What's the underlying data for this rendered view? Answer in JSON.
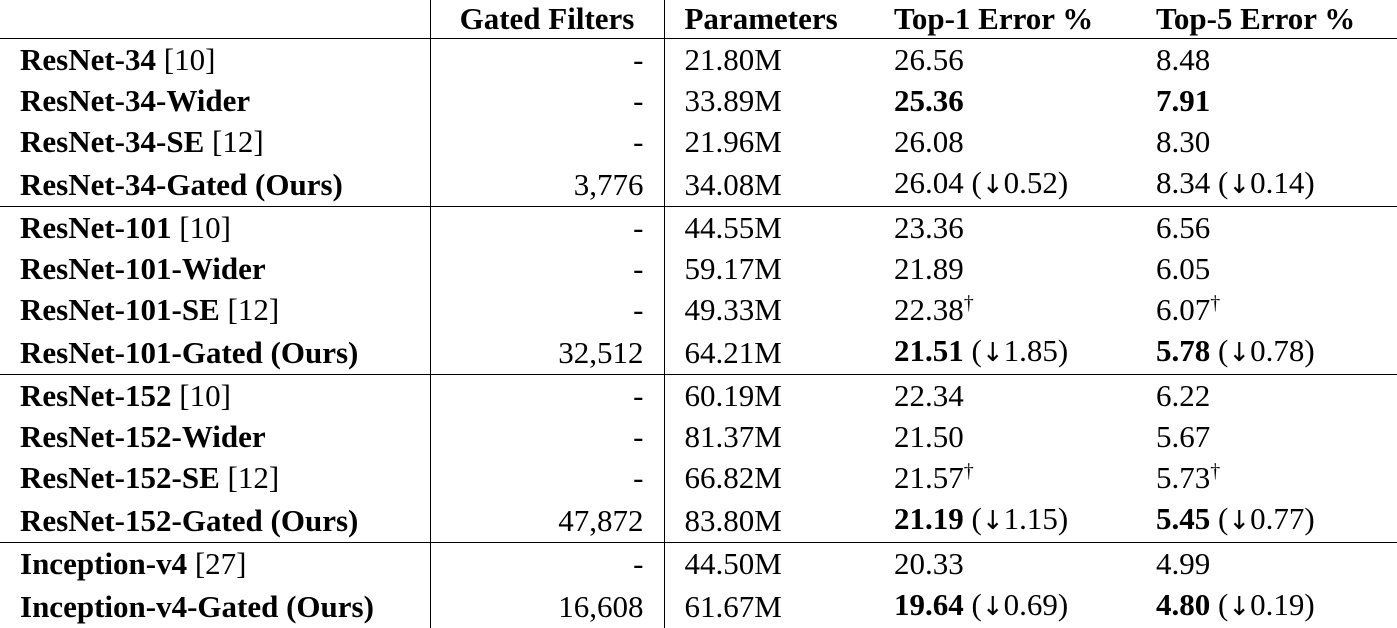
{
  "table": {
    "headers": {
      "model": "",
      "gated_filters": "Gated Filters",
      "parameters": "Parameters",
      "top1": "Top-1 Error %",
      "top5": "Top-5 Error %"
    },
    "groups": [
      {
        "rows": [
          {
            "name": "ResNet-34",
            "ref": " [10]",
            "gated": "-",
            "params": "21.80M",
            "top1": {
              "val": "26.56",
              "bold": false,
              "delta": "",
              "dag": false
            },
            "top5": {
              "val": "8.48",
              "bold": false,
              "delta": "",
              "dag": false
            }
          },
          {
            "name": "ResNet-34-Wider",
            "ref": "",
            "gated": "-",
            "params": "33.89M",
            "top1": {
              "val": "25.36",
              "bold": true,
              "delta": "",
              "dag": false
            },
            "top5": {
              "val": "7.91",
              "bold": true,
              "delta": "",
              "dag": false
            }
          },
          {
            "name": "ResNet-34-SE",
            "ref": " [12]",
            "gated": "-",
            "params": "21.96M",
            "top1": {
              "val": "26.08",
              "bold": false,
              "delta": "",
              "dag": false
            },
            "top5": {
              "val": "8.30",
              "bold": false,
              "delta": "",
              "dag": false
            }
          },
          {
            "name": "ResNet-34-Gated (Ours)",
            "ref": "",
            "gated": "3,776",
            "params": "34.08M",
            "top1": {
              "val": "26.04",
              "bold": false,
              "delta": "0.52",
              "dag": false
            },
            "top5": {
              "val": "8.34",
              "bold": false,
              "delta": "0.14",
              "dag": false
            }
          }
        ]
      },
      {
        "rows": [
          {
            "name": "ResNet-101",
            "ref": " [10]",
            "gated": "-",
            "params": "44.55M",
            "top1": {
              "val": "23.36",
              "bold": false,
              "delta": "",
              "dag": false
            },
            "top5": {
              "val": "6.56",
              "bold": false,
              "delta": "",
              "dag": false
            }
          },
          {
            "name": "ResNet-101-Wider",
            "ref": "",
            "gated": "-",
            "params": "59.17M",
            "top1": {
              "val": "21.89",
              "bold": false,
              "delta": "",
              "dag": false
            },
            "top5": {
              "val": "6.05",
              "bold": false,
              "delta": "",
              "dag": false
            }
          },
          {
            "name": "ResNet-101-SE",
            "ref": " [12]",
            "gated": "-",
            "params": "49.33M",
            "top1": {
              "val": "22.38",
              "bold": false,
              "delta": "",
              "dag": true
            },
            "top5": {
              "val": "6.07",
              "bold": false,
              "delta": "",
              "dag": true
            }
          },
          {
            "name": "ResNet-101-Gated (Ours)",
            "ref": "",
            "gated": "32,512",
            "params": "64.21M",
            "top1": {
              "val": "21.51",
              "bold": true,
              "delta": "1.85",
              "dag": false
            },
            "top5": {
              "val": "5.78",
              "bold": true,
              "delta": "0.78",
              "dag": false
            }
          }
        ]
      },
      {
        "rows": [
          {
            "name": "ResNet-152",
            "ref": " [10]",
            "gated": "-",
            "params": "60.19M",
            "top1": {
              "val": "22.34",
              "bold": false,
              "delta": "",
              "dag": false
            },
            "top5": {
              "val": "6.22",
              "bold": false,
              "delta": "",
              "dag": false
            }
          },
          {
            "name": "ResNet-152-Wider",
            "ref": "",
            "gated": "-",
            "params": "81.37M",
            "top1": {
              "val": "21.50",
              "bold": false,
              "delta": "",
              "dag": false
            },
            "top5": {
              "val": "5.67",
              "bold": false,
              "delta": "",
              "dag": false
            }
          },
          {
            "name": "ResNet-152-SE",
            "ref": " [12]",
            "gated": "-",
            "params": "66.82M",
            "top1": {
              "val": "21.57",
              "bold": false,
              "delta": "",
              "dag": true
            },
            "top5": {
              "val": "5.73",
              "bold": false,
              "delta": "",
              "dag": true
            }
          },
          {
            "name": "ResNet-152-Gated (Ours)",
            "ref": "",
            "gated": "47,872",
            "params": "83.80M",
            "top1": {
              "val": "21.19",
              "bold": true,
              "delta": "1.15",
              "dag": false
            },
            "top5": {
              "val": "5.45",
              "bold": true,
              "delta": "0.77",
              "dag": false
            }
          }
        ]
      },
      {
        "rows": [
          {
            "name": "Inception-v4",
            "ref": " [27]",
            "gated": "-",
            "params": "44.50M",
            "top1": {
              "val": "20.33",
              "bold": false,
              "delta": "",
              "dag": false
            },
            "top5": {
              "val": "4.99",
              "bold": false,
              "delta": "",
              "dag": false
            }
          },
          {
            "name": "Inception-v4-Gated (Ours)",
            "ref": "",
            "gated": "16,608",
            "params": "61.67M",
            "top1": {
              "val": "19.64",
              "bold": true,
              "delta": "0.69",
              "dag": false
            },
            "top5": {
              "val": "4.80",
              "bold": true,
              "delta": "0.19",
              "dag": false
            }
          }
        ]
      }
    ],
    "symbols": {
      "down_arrow": "↓",
      "dagger": "†"
    }
  }
}
